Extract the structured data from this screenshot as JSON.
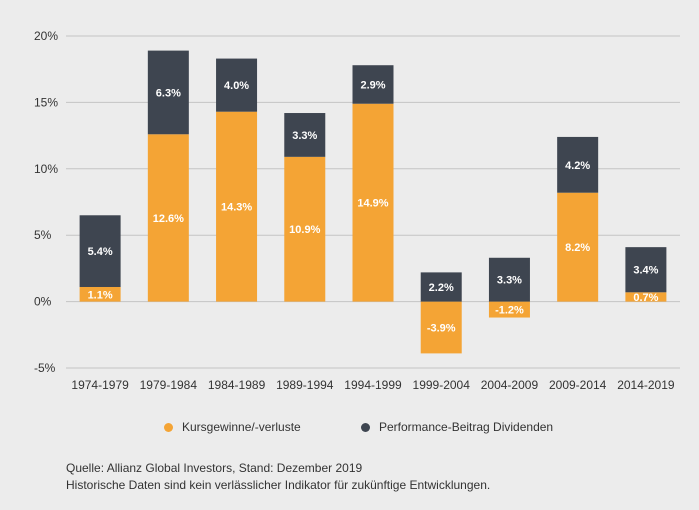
{
  "chart_data": {
    "type": "bar",
    "stacked": true,
    "categories": [
      "1974-1979",
      "1979-1984",
      "1984-1989",
      "1989-1994",
      "1994-1999",
      "1999-2004",
      "2004-2009",
      "2009-2014",
      "2014-2019"
    ],
    "series": [
      {
        "name": "Kursgewinne/-verluste",
        "color": "#f4a435",
        "values": [
          1.1,
          12.6,
          14.3,
          10.9,
          14.9,
          -3.9,
          -1.2,
          8.2,
          0.7
        ],
        "labels": [
          "1.1%",
          "12.6%",
          "14.3%",
          "10.9%",
          "14.9%",
          "-3.9%",
          "-1.2%",
          "8.2%",
          "0.7%"
        ]
      },
      {
        "name": "Performance-Beitrag Dividenden",
        "color": "#3e4550",
        "values": [
          5.4,
          6.3,
          4.0,
          3.3,
          2.9,
          2.2,
          3.3,
          4.2,
          3.4
        ],
        "labels": [
          "5.4%",
          "6.3%",
          "4.0%",
          "3.3%",
          "2.9%",
          "2.2%",
          "3.3%",
          "4.2%",
          "3.4%"
        ]
      }
    ],
    "ylim": [
      -5,
      20
    ],
    "yticks": [
      20,
      15,
      10,
      5,
      0,
      -5
    ],
    "ytick_labels": [
      "20%",
      "15%",
      "10%",
      "5%",
      "0%",
      "-5%"
    ],
    "grid": true,
    "legend_position": "bottom"
  },
  "legend": {
    "price": "Kursgewinne/-verluste",
    "dividend": "Performance-Beitrag Dividenden"
  },
  "footnote": {
    "source": "Quelle: Allianz Global Investors, Stand: Dezember 2019",
    "disclaimer": "Historische Daten sind kein verlässlicher Indikator für zukünftige Entwicklungen."
  },
  "colors": {
    "price": "#f4a435",
    "dividend": "#3e4550",
    "background": "#ececec",
    "grid": "#c4c4c4"
  }
}
